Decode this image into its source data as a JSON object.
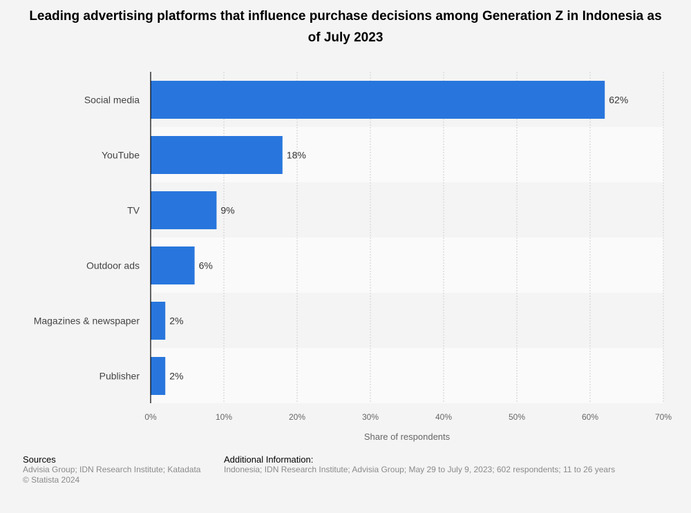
{
  "chart_data": {
    "type": "bar",
    "orientation": "horizontal",
    "title": "Leading advertising platforms that influence purchase decisions among Generation Z in Indonesia as of July 2023",
    "categories": [
      "Social media",
      "YouTube",
      "TV",
      "Outdoor ads",
      "Magazines & newspaper",
      "Publisher"
    ],
    "values": [
      62,
      18,
      9,
      6,
      2,
      2
    ],
    "value_labels": [
      "62%",
      "18%",
      "9%",
      "6%",
      "2%",
      "2%"
    ],
    "xlabel": "Share of respondents",
    "ylabel": "",
    "xlim": [
      0,
      70
    ],
    "ticks": [
      0,
      10,
      20,
      30,
      40,
      50,
      60,
      70
    ],
    "tick_labels": [
      "0%",
      "10%",
      "20%",
      "30%",
      "40%",
      "50%",
      "60%",
      "70%"
    ],
    "grid": true,
    "bar_color": "#2876dd"
  },
  "footer": {
    "sources_heading": "Sources",
    "sources_text": "Advisia Group; IDN Research Institute; Katadata",
    "copyright": "© Statista 2024",
    "additional_heading": "Additional Information:",
    "additional_text": "Indonesia; IDN Research Institute; Advisia Group; May 29 to July 9, 2023; 602 respondents; 11 to 26 years"
  }
}
